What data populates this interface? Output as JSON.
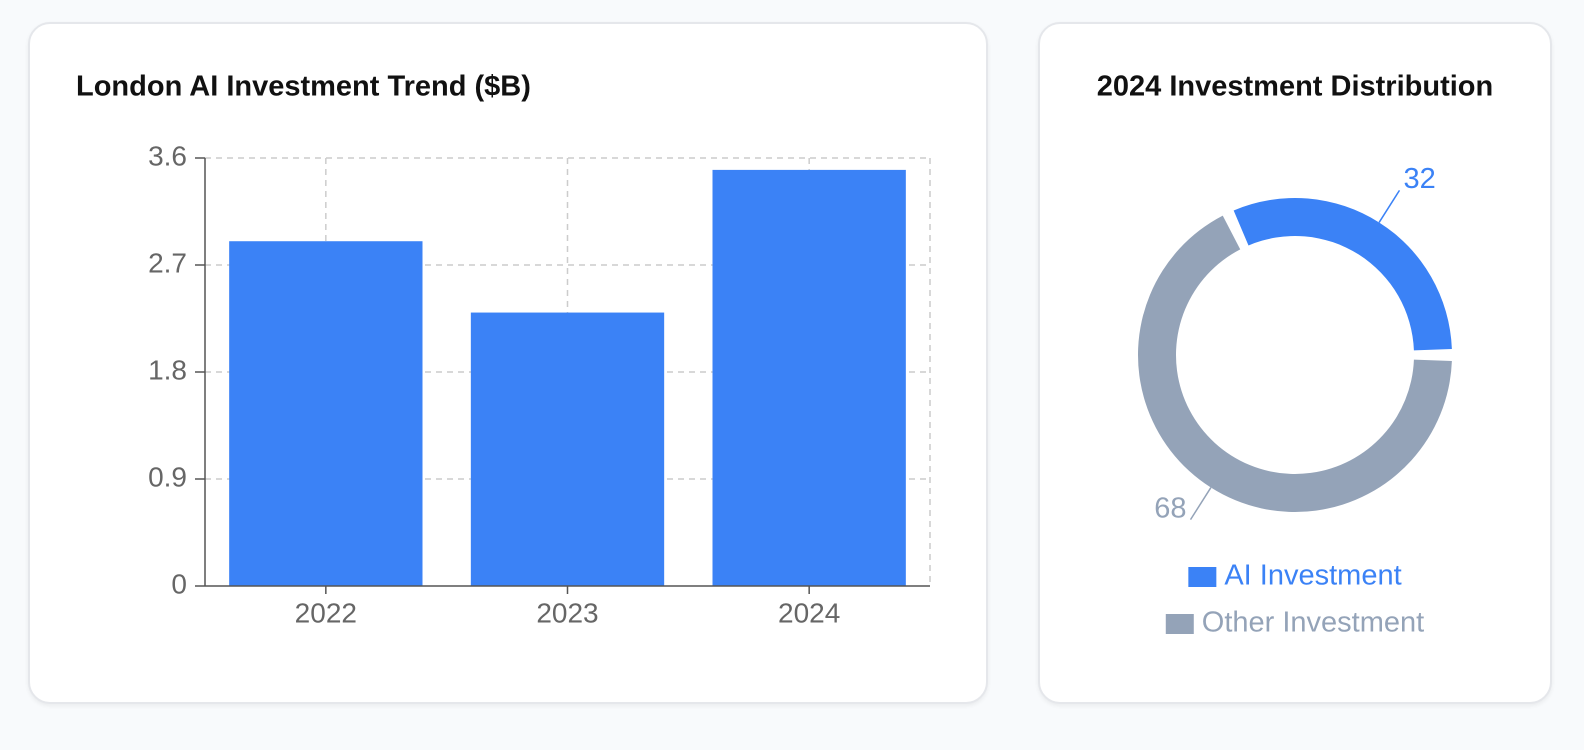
{
  "chart_data": [
    {
      "type": "bar",
      "title": "London AI Investment Trend ($B)",
      "categories": [
        "2022",
        "2023",
        "2024"
      ],
      "values": [
        2.9,
        2.3,
        3.5
      ],
      "color": "#3b82f6",
      "ylim": [
        0,
        3.6
      ],
      "yticks": [
        0,
        0.9,
        1.8,
        2.7,
        3.6
      ],
      "grid": true
    },
    {
      "type": "pie",
      "title": "2024 Investment Distribution",
      "categories": [
        "AI Investment",
        "Other Investment"
      ],
      "values": [
        32,
        68
      ],
      "colors": [
        "#3b82f6",
        "#94a3b8"
      ]
    }
  ]
}
